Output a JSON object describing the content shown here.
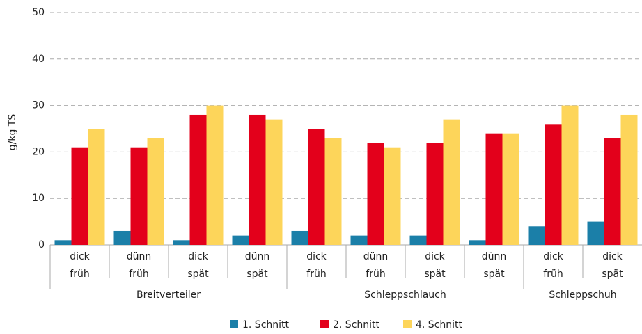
{
  "chart_data": {
    "type": "bar",
    "y_label": "g/kg TS",
    "groups": [
      {
        "name": "Breitverteiler",
        "categories": [
          [
            "dick",
            "früh"
          ],
          [
            "dünn",
            "früh"
          ],
          [
            "dick",
            "spät"
          ],
          [
            "dünn",
            "spät"
          ]
        ]
      },
      {
        "name": "Schleppschlauch",
        "categories": [
          [
            "dick",
            "früh"
          ],
          [
            "dünn",
            "früh"
          ],
          [
            "dick",
            "spät"
          ],
          [
            "dünn",
            "spät"
          ]
        ]
      },
      {
        "name": "Schleppschuh",
        "categories": [
          [
            "dick",
            "früh"
          ],
          [
            "dick",
            "spät"
          ]
        ]
      }
    ],
    "series": [
      {
        "name": "1. Schnitt",
        "color": "#1b7fa8",
        "values": [
          1,
          3,
          1,
          2,
          3,
          2,
          2,
          1,
          4,
          5
        ]
      },
      {
        "name": "2. Schnitt",
        "color": "#e3001b",
        "values": [
          21,
          21,
          28,
          28,
          25,
          22,
          22,
          24,
          26,
          23
        ]
      },
      {
        "name": "4. Schnitt",
        "color": "#fdd55a",
        "values": [
          25,
          23,
          30,
          27,
          23,
          21,
          27,
          24,
          30,
          28
        ]
      }
    ],
    "ylim": [
      0,
      50
    ],
    "yticks": [
      0,
      10,
      20,
      30,
      40,
      50
    ],
    "grid": true
  }
}
